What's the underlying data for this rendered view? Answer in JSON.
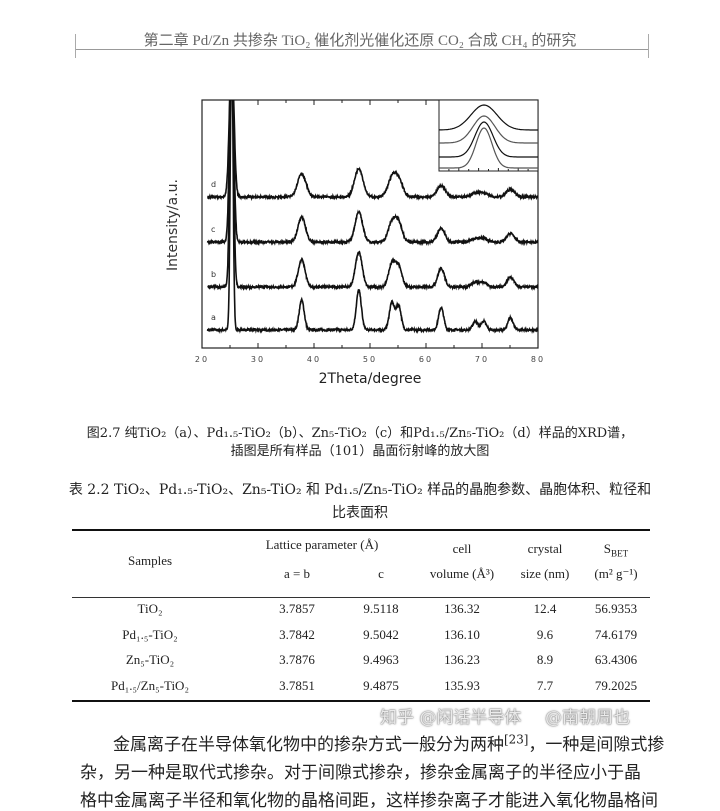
{
  "header": {
    "text": "第二章  Pd/Zn 共掺杂 TiO₂ 催化剂光催化还原 CO₂ 合成 CH₄ 的研究"
  },
  "figure": {
    "caption_line1": "图2.7  纯TiO₂（a）、Pd₁.₅-TiO₂（b）、Zn₅-TiO₂（c）和Pd₁.₅/Zn₅-TiO₂（d）样品的XRD谱，",
    "caption_line2": "插图是所有样品（101）晶面衍射峰的放大图"
  },
  "chart_data": {
    "type": "line",
    "xlabel": "2Theta/degree",
    "ylabel": "Intensity/a.u.",
    "xlim": [
      20,
      80
    ],
    "xticks": [
      "20",
      "30",
      "40",
      "50",
      "60",
      "70",
      "80"
    ],
    "ylim": [
      0,
      100
    ],
    "grid": false,
    "line_color": "#111111",
    "peak_positions": [
      25.3,
      37.8,
      48.0,
      53.9,
      55.1,
      62.7,
      68.8,
      70.3,
      75.1
    ],
    "series": [
      {
        "name": "a",
        "baseline": 7.3,
        "width": 0.3,
        "peak_heights": [
          120,
          12,
          16,
          11,
          10,
          9,
          3.5,
          3.5,
          5
        ]
      },
      {
        "name": "b",
        "baseline": 24.6,
        "width": 0.4,
        "peak_heights": [
          100,
          11,
          14,
          9,
          8,
          7.5,
          2,
          2,
          4
        ]
      },
      {
        "name": "c",
        "baseline": 42.7,
        "width": 0.45,
        "peak_heights": [
          80,
          10,
          12,
          7.5,
          7.5,
          5.5,
          1.5,
          1.5,
          3.5
        ]
      },
      {
        "name": "d",
        "baseline": 60.9,
        "width": 0.5,
        "peak_heights": [
          60,
          9.5,
          11.5,
          7,
          6.5,
          4.5,
          1.5,
          1.5,
          3
        ]
      }
    ],
    "inset": {
      "description_from_caption": "(101)",
      "curves": 4
    }
  },
  "table": {
    "title_line1": "表 2.2 TiO₂、Pd₁.₅-TiO₂、Zn₅-TiO₂ 和 Pd₁.₅/Zn₅-TiO₂ 样品的晶胞参数、晶胞体积、粒径和",
    "title_line2": "比表面积",
    "headers": {
      "samples": "Samples",
      "lattice": "Lattice parameter (Å)",
      "ab": "a = b",
      "c": "c",
      "cell1": "cell",
      "cell2": "volume (Å³)",
      "crystal1": "crystal",
      "crystal2": "size (nm)",
      "sbet_s": "S",
      "sbet_sub": "BET",
      "sbet2": "(m² g⁻¹)"
    },
    "rows": [
      {
        "sample": "TiO₂",
        "ab": "3.7857",
        "c": "9.5118",
        "volume": "136.32",
        "size": "12.4",
        "sbet": "56.9353"
      },
      {
        "sample": "Pd₁.₅-TiO₂",
        "ab": "3.7842",
        "c": "9.5042",
        "volume": "136.10",
        "size": "9.6",
        "sbet": "74.6179"
      },
      {
        "sample": "Zn₅-TiO₂",
        "ab": "3.7876",
        "c": "9.4963",
        "volume": "136.23",
        "size": "8.9",
        "sbet": "63.4306"
      },
      {
        "sample": "Pd₁.₅/Zn₅-TiO₂",
        "ab": "3.7851",
        "c": "9.4875",
        "volume": "135.93",
        "size": "7.7",
        "sbet": "79.2025"
      }
    ]
  },
  "body": {
    "line1_a": "金属离子在半导体氧化物中的掺杂方式一般分为两种",
    "line1_ref": "[23]",
    "line1_b": "，一种是间隙式掺",
    "line2": "杂，另一种是取代式掺杂。对于间隙式掺杂，掺杂金属离子的半径应小于晶",
    "line3": "格中金属离子半径和氧化物的晶格间距，这样掺杂离子才能进入氧化物晶格间"
  },
  "watermark": {
    "line1": "知乎 @闲话半导体",
    "line2": "@南朝周也"
  }
}
